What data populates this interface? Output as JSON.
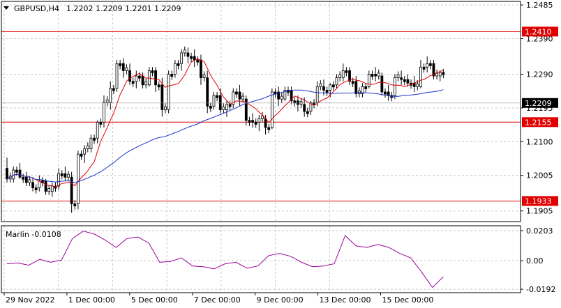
{
  "header": {
    "symbol_text": "GBPUSD,H4",
    "ohlc_text": "1.2202 1.2209 1.2201 1.2209"
  },
  "indicator": {
    "label": "Marlin -0.0108"
  },
  "colors": {
    "bull": "#ffffff",
    "bear": "#000000",
    "wick": "#000000",
    "ma_fast": "#e00000",
    "ma_slow": "#1a33cc",
    "levels": "#e00000",
    "marlin": "#9a0096",
    "grid": "#c8c8c8"
  },
  "chart_data": [
    {
      "type": "candlestick",
      "title": "GBPUSD,H4",
      "ylim": [
        1.1875,
        1.2495
      ],
      "y_ticks": [
        "1.2485",
        "1.2390",
        "1.2290",
        "1.2195",
        "1.2100",
        "1.2005",
        "1.1905"
      ],
      "y_tick_values": [
        1.2485,
        1.239,
        1.229,
        1.2195,
        1.21,
        1.2005,
        1.1905
      ],
      "x_ticks": [
        "29 Nov 2022",
        "1 Dec 00:00",
        "5 Dec 00:00",
        "7 Dec 00:00",
        "9 Dec 00:00",
        "13 Dec 00:00",
        "15 Dec 00:00"
      ],
      "x_tick_index": [
        0,
        24,
        48,
        72,
        96,
        120,
        144
      ],
      "grid": true,
      "levels": [
        {
          "value": 1.241,
          "label": "1.2410"
        },
        {
          "value": 1.2155,
          "label": "1.2155"
        },
        {
          "value": 1.1933,
          "label": "1.1933"
        }
      ],
      "current_price": {
        "value": 1.2209,
        "label": "1.2209"
      },
      "candles": [
        [
          1.2025,
          1.2055,
          1.1985,
          1.1995
        ],
        [
          1.1995,
          1.203,
          1.1985,
          1.202
        ],
        [
          1.202,
          1.204,
          1.1995,
          1.2
        ],
        [
          1.2,
          1.2015,
          1.1975,
          1.1985
        ],
        [
          1.1985,
          1.2,
          1.196,
          1.197
        ],
        [
          1.197,
          1.2005,
          1.196,
          1.199
        ],
        [
          1.199,
          1.1995,
          1.195,
          1.196
        ],
        [
          1.196,
          1.1985,
          1.1945,
          1.1975
        ],
        [
          1.1975,
          1.2025,
          1.1965,
          1.201
        ],
        [
          1.201,
          1.203,
          1.199,
          1.2
        ],
        [
          1.2,
          1.2015,
          1.19,
          1.1925
        ],
        [
          1.1925,
          1.2075,
          1.191,
          1.2065
        ],
        [
          1.2065,
          1.209,
          1.204,
          1.208
        ],
        [
          1.208,
          1.212,
          1.207,
          1.211
        ],
        [
          1.211,
          1.216,
          1.2095,
          1.2155
        ],
        [
          1.2155,
          1.223,
          1.214,
          1.221
        ],
        [
          1.221,
          1.227,
          1.219,
          1.225
        ],
        [
          1.225,
          1.233,
          1.224,
          1.232
        ],
        [
          1.232,
          1.2335,
          1.228,
          1.23
        ],
        [
          1.23,
          1.232,
          1.226,
          1.227
        ],
        [
          1.227,
          1.23,
          1.225,
          1.2285
        ],
        [
          1.2285,
          1.2295,
          1.225,
          1.226
        ],
        [
          1.226,
          1.231,
          1.2255,
          1.23
        ],
        [
          1.23,
          1.231,
          1.224,
          1.226
        ],
        [
          1.226,
          1.228,
          1.217,
          1.219
        ],
        [
          1.219,
          1.23,
          1.218,
          1.229
        ],
        [
          1.229,
          1.233,
          1.228,
          1.232
        ],
        [
          1.232,
          1.236,
          1.23,
          1.235
        ],
        [
          1.235,
          1.2365,
          1.232,
          1.234
        ],
        [
          1.234,
          1.236,
          1.231,
          1.233
        ],
        [
          1.233,
          1.2345,
          1.226,
          1.228
        ],
        [
          1.228,
          1.23,
          1.218,
          1.22
        ],
        [
          1.22,
          1.224,
          1.219,
          1.223
        ],
        [
          1.223,
          1.225,
          1.218,
          1.219
        ],
        [
          1.219,
          1.2215,
          1.217,
          1.2205
        ],
        [
          1.2205,
          1.225,
          1.2195,
          1.224
        ],
        [
          1.224,
          1.226,
          1.22,
          1.222
        ],
        [
          1.222,
          1.223,
          1.2145,
          1.216
        ],
        [
          1.216,
          1.218,
          1.214,
          1.2155
        ],
        [
          1.2155,
          1.2175,
          1.213,
          1.2165
        ],
        [
          1.2165,
          1.2175,
          1.212,
          1.214
        ],
        [
          1.214,
          1.225,
          1.2135,
          1.224
        ],
        [
          1.224,
          1.2255,
          1.22,
          1.222
        ],
        [
          1.222,
          1.2255,
          1.2215,
          1.2245
        ],
        [
          1.2245,
          1.2255,
          1.2205,
          1.2215
        ],
        [
          1.2215,
          1.223,
          1.2185,
          1.2205
        ],
        [
          1.2205,
          1.2225,
          1.217,
          1.2185
        ],
        [
          1.2185,
          1.2215,
          1.2175,
          1.221
        ],
        [
          1.221,
          1.227,
          1.22,
          1.2255
        ],
        [
          1.2255,
          1.2275,
          1.223,
          1.2245
        ],
        [
          1.2245,
          1.2265,
          1.2225,
          1.226
        ],
        [
          1.226,
          1.229,
          1.225,
          1.228
        ],
        [
          1.228,
          1.232,
          1.227,
          1.23
        ],
        [
          1.23,
          1.231,
          1.226,
          1.227
        ],
        [
          1.227,
          1.2285,
          1.2225,
          1.2235
        ],
        [
          1.2235,
          1.2265,
          1.2225,
          1.2255
        ],
        [
          1.2255,
          1.23,
          1.225,
          1.229
        ],
        [
          1.229,
          1.231,
          1.227,
          1.2285
        ],
        [
          1.2285,
          1.2295,
          1.223,
          1.224
        ],
        [
          1.224,
          1.226,
          1.2215,
          1.223
        ],
        [
          1.223,
          1.229,
          1.222,
          1.228
        ],
        [
          1.228,
          1.23,
          1.226,
          1.2275
        ],
        [
          1.2275,
          1.229,
          1.2255,
          1.2265
        ],
        [
          1.2265,
          1.2285,
          1.224,
          1.2255
        ],
        [
          1.2255,
          1.233,
          1.225,
          1.231
        ],
        [
          1.231,
          1.234,
          1.2295,
          1.232
        ],
        [
          1.232,
          1.233,
          1.2275,
          1.2285
        ],
        [
          1.2285,
          1.23,
          1.227,
          1.2295
        ]
      ]
    },
    {
      "type": "line",
      "title": "Marlin -0.0108",
      "ylim": [
        -0.0215,
        0.0236
      ],
      "y_ticks": [
        "0.0203",
        "0.00",
        "-0.0192"
      ],
      "y_tick_values": [
        0.0203,
        0.0,
        -0.0192
      ],
      "x": [
        0,
        4,
        8,
        12,
        16,
        20,
        24,
        28,
        32,
        36,
        40,
        44,
        48,
        52,
        56,
        60,
        64,
        68,
        72,
        76,
        80,
        84,
        88,
        92,
        96,
        100,
        104,
        108,
        112,
        116,
        120,
        124,
        128,
        132,
        136,
        140,
        144,
        148,
        152,
        156,
        160
      ],
      "series": [
        {
          "values": [
            -0.002,
            -0.0015,
            -0.003,
            0.001,
            -0.001,
            0.0005,
            0.015,
            0.02,
            0.018,
            0.014,
            0.009,
            0.015,
            0.016,
            0.012,
            -0.001,
            -0.0005,
            0.002,
            -0.0035,
            -0.004,
            -0.0055,
            -0.002,
            -0.001,
            -0.005,
            -0.0035,
            0.0035,
            0.005,
            0.003,
            -0.001,
            -0.004,
            -0.0035,
            -0.002,
            0.017,
            0.01,
            0.009,
            0.011,
            0.009,
            0.005,
            0.002,
            -0.0075,
            -0.018,
            -0.0108
          ]
        }
      ]
    }
  ]
}
